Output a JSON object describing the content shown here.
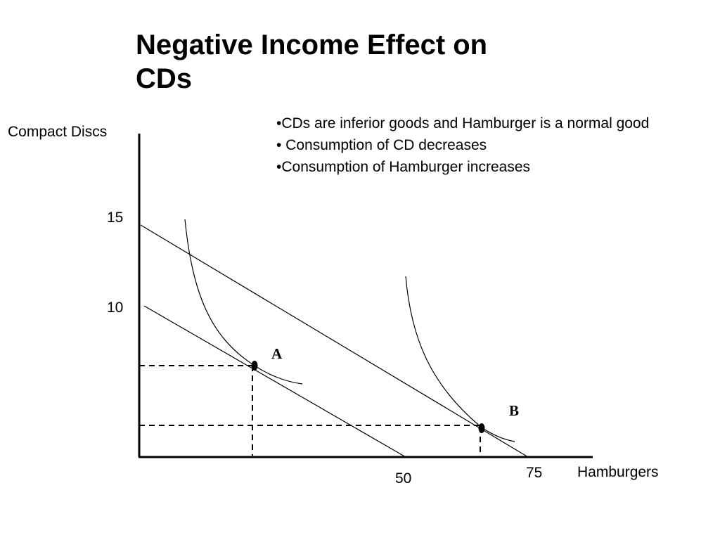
{
  "title": {
    "line1": "Negative Income Effect on",
    "line2": "CDs"
  },
  "bullets": [
    "•CDs are inferior goods and Hamburger is a normal good",
    "• Consumption of CD decreases",
    "•Consumption of Hamburger increases"
  ],
  "axes": {
    "y_label": "Compact Discs",
    "x_label": "Hamburgers",
    "y_ticks": [
      "15",
      "10"
    ],
    "x_ticks": [
      "50",
      "75"
    ]
  },
  "points": {
    "a": "A",
    "b": "B"
  }
}
